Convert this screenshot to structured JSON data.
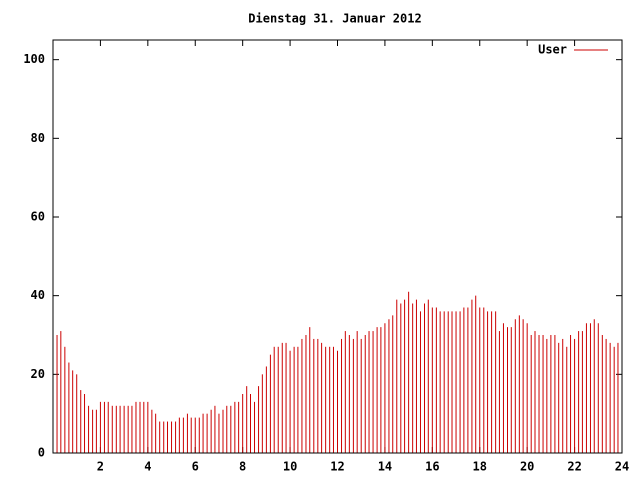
{
  "chart_data": {
    "type": "impulse",
    "title": "Dienstag 31. Januar 2012",
    "xlim": [
      0,
      24
    ],
    "ylim": [
      0,
      105
    ],
    "xticks": [
      2,
      4,
      6,
      8,
      10,
      12,
      14,
      16,
      18,
      20,
      22,
      24
    ],
    "yticks": [
      0,
      20,
      40,
      60,
      80,
      100
    ],
    "legend": "top-right",
    "series": [
      {
        "name": "User",
        "color": "#cc0000",
        "x": [
          0,
          0.17,
          0.33,
          0.5,
          0.67,
          0.83,
          1,
          1.17,
          1.33,
          1.5,
          1.67,
          1.83,
          2,
          2.17,
          2.33,
          2.5,
          2.67,
          2.83,
          3,
          3.17,
          3.33,
          3.5,
          3.67,
          3.83,
          4,
          4.17,
          4.33,
          4.5,
          4.67,
          4.83,
          5,
          5.17,
          5.33,
          5.5,
          5.67,
          5.83,
          6,
          6.17,
          6.33,
          6.5,
          6.67,
          6.83,
          7,
          7.17,
          7.33,
          7.5,
          7.67,
          7.83,
          8,
          8.17,
          8.33,
          8.5,
          8.67,
          8.83,
          9,
          9.17,
          9.33,
          9.5,
          9.67,
          9.83,
          10,
          10.17,
          10.33,
          10.5,
          10.67,
          10.83,
          11,
          11.17,
          11.33,
          11.5,
          11.67,
          11.83,
          12,
          12.17,
          12.33,
          12.5,
          12.67,
          12.83,
          13,
          13.17,
          13.33,
          13.5,
          13.67,
          13.83,
          14,
          14.17,
          14.33,
          14.5,
          14.67,
          14.83,
          15,
          15.17,
          15.33,
          15.5,
          15.67,
          15.83,
          16,
          16.17,
          16.33,
          16.5,
          16.67,
          16.83,
          17,
          17.17,
          17.33,
          17.5,
          17.67,
          17.83,
          18,
          18.17,
          18.33,
          18.5,
          18.67,
          18.83,
          19,
          19.17,
          19.33,
          19.5,
          19.67,
          19.83,
          20,
          20.17,
          20.33,
          20.5,
          20.67,
          20.83,
          21,
          21.17,
          21.33,
          21.5,
          21.67,
          21.83,
          22,
          22.17,
          22.33,
          22.5,
          22.67,
          22.83,
          23,
          23.17,
          23.33,
          23.5,
          23.67,
          23.83
        ],
        "values": [
          29,
          30,
          31,
          27,
          23,
          21,
          20,
          16,
          15,
          12,
          11,
          11,
          13,
          13,
          13,
          12,
          12,
          12,
          12,
          12,
          12,
          13,
          13,
          13,
          13,
          11,
          10,
          8,
          8,
          8,
          8,
          8,
          9,
          9,
          10,
          9,
          9,
          9,
          10,
          10,
          11,
          12,
          10,
          11,
          12,
          12,
          13,
          13,
          15,
          17,
          15,
          13,
          17,
          20,
          22,
          25,
          27,
          27,
          28,
          28,
          26,
          27,
          27,
          29,
          30,
          32,
          29,
          29,
          28,
          27,
          27,
          27,
          26,
          29,
          31,
          30,
          29,
          31,
          29,
          30,
          31,
          31,
          32,
          32,
          33,
          34,
          35,
          39,
          38,
          39,
          41,
          38,
          39,
          36,
          38,
          39,
          37,
          37,
          36,
          36,
          36,
          36,
          36,
          36,
          37,
          37,
          39,
          40,
          37,
          37,
          36,
          36,
          36,
          31,
          33,
          32,
          32,
          34,
          35,
          34,
          33,
          30,
          31,
          30,
          30,
          29,
          30,
          30,
          28,
          29,
          27,
          30,
          29,
          31,
          31,
          33,
          33,
          34,
          33,
          30,
          29,
          28,
          27,
          28
        ]
      }
    ]
  }
}
